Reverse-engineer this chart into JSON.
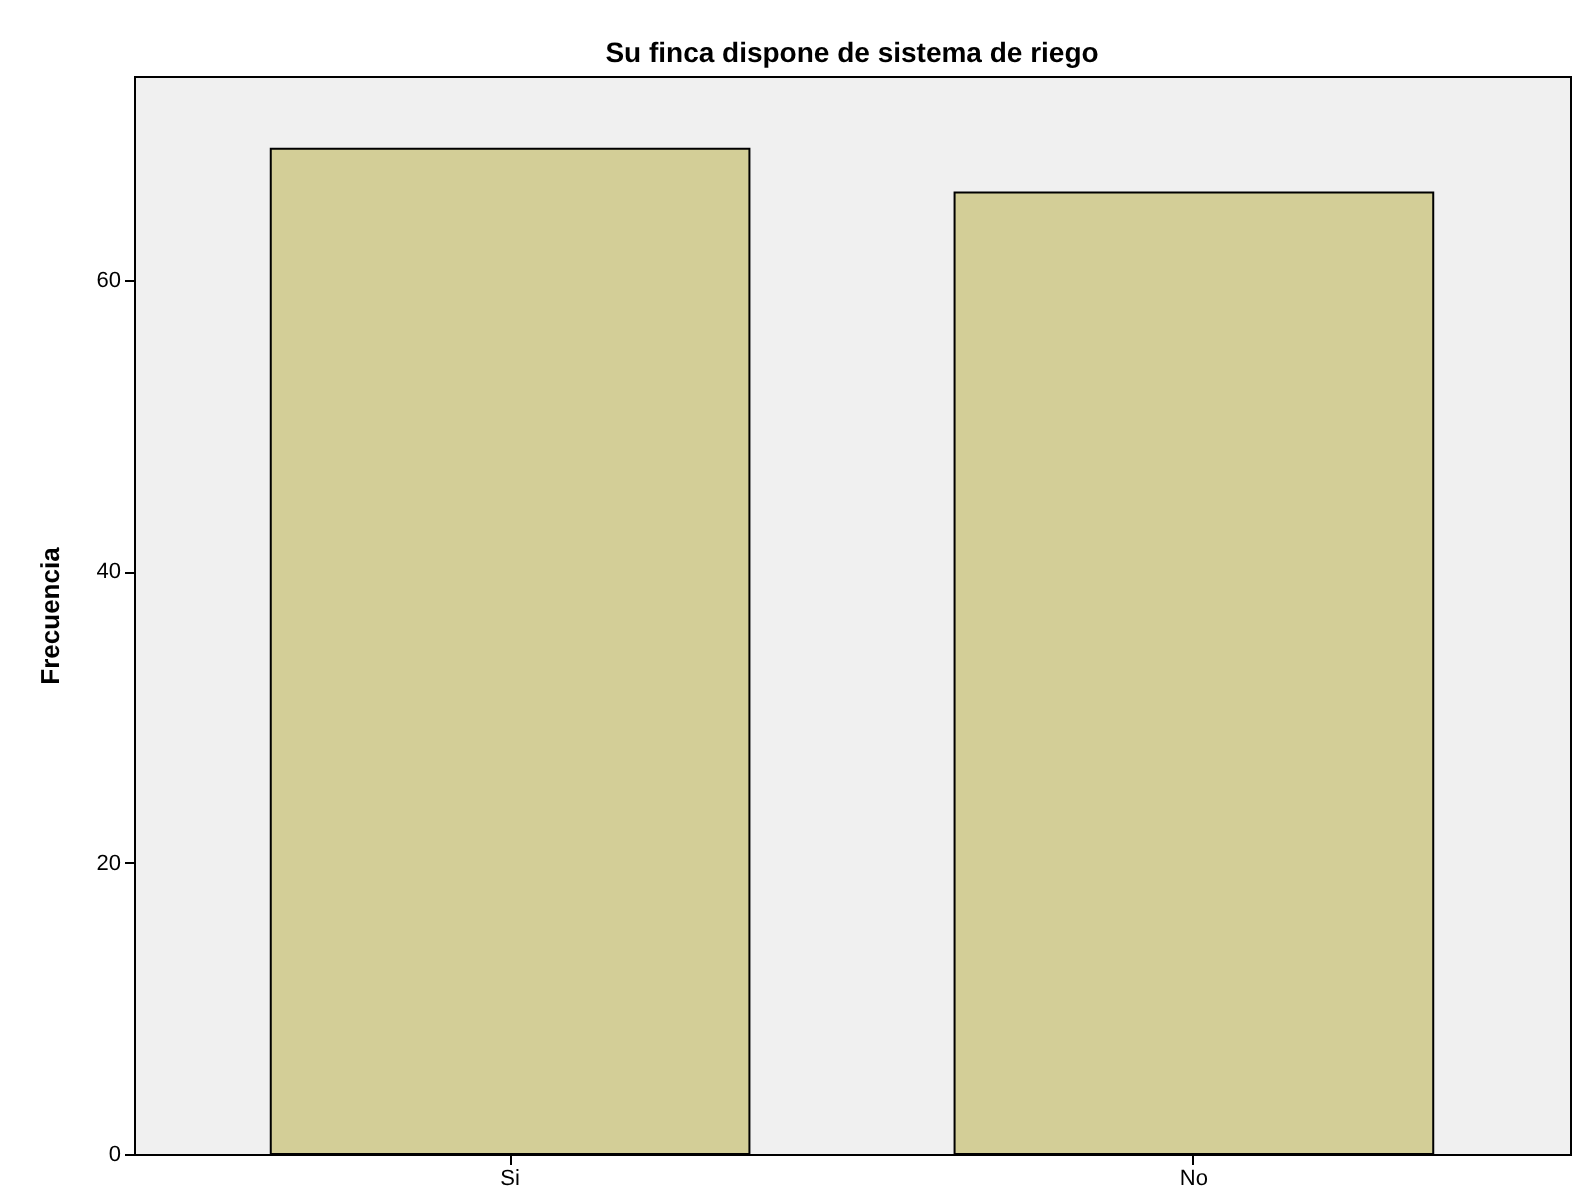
{
  "chart_data": {
    "type": "bar",
    "title": "Su finca dispone de sistema de riego",
    "ylabel": "Frecuencia",
    "categories": [
      "Si",
      "No"
    ],
    "values": [
      69,
      66
    ],
    "color": "#d3ce97",
    "ylim": [
      0,
      74
    ],
    "yticks": [
      0,
      20,
      40,
      60
    ],
    "grid": false
  }
}
